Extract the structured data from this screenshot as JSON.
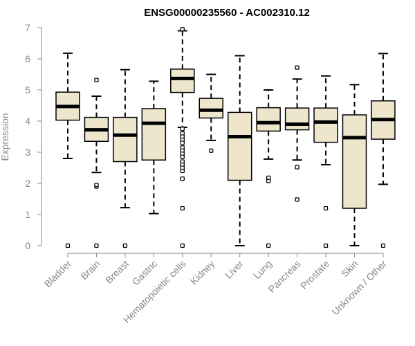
{
  "chart_data": {
    "type": "box",
    "title": "ENSG00000235560 - AC002310.12",
    "xlabel": "",
    "ylabel": "Expression",
    "ylim": [
      0,
      7
    ],
    "yticks": [
      0,
      1,
      2,
      3,
      4,
      5,
      6,
      7
    ],
    "grid": false,
    "legend": "none",
    "box_fill": "#ede6cc",
    "line_color": "#000000",
    "categories": [
      "Bladder",
      "Brain",
      "Breast",
      "Gastric",
      "Hematopoietic cells",
      "Kidney",
      "Liver",
      "Lung",
      "Pancreas",
      "Prostate",
      "Skin",
      "Unknown / Other"
    ],
    "boxes": [
      {
        "category": "Bladder",
        "whisker_low": 2.8,
        "q1": 4.03,
        "median": 4.47,
        "q3": 4.93,
        "whisker_high": 6.18,
        "outliers": [
          0
        ]
      },
      {
        "category": "Brain",
        "whisker_low": 2.35,
        "q1": 3.35,
        "median": 3.72,
        "q3": 4.12,
        "whisker_high": 4.8,
        "outliers": [
          0,
          1.9,
          1.95,
          5.32
        ]
      },
      {
        "category": "Breast",
        "whisker_low": 1.22,
        "q1": 2.7,
        "median": 3.55,
        "q3": 4.12,
        "whisker_high": 5.65,
        "outliers": [
          0
        ]
      },
      {
        "category": "Gastric",
        "whisker_low": 1.03,
        "q1": 2.75,
        "median": 3.93,
        "q3": 4.4,
        "whisker_high": 5.28,
        "outliers": []
      },
      {
        "category": "Hematopoietic cells",
        "whisker_low": 3.8,
        "q1": 4.92,
        "median": 5.37,
        "q3": 5.67,
        "whisker_high": 6.9,
        "outliers": [
          6.95,
          3.75,
          3.6,
          3.5,
          3.4,
          3.3,
          3.15,
          3.05,
          2.95,
          2.85,
          2.7,
          2.6,
          2.5,
          2.4,
          2.15,
          1.2,
          0
        ]
      },
      {
        "category": "Kidney",
        "whisker_low": 3.38,
        "q1": 4.1,
        "median": 4.35,
        "q3": 4.73,
        "whisker_high": 5.5,
        "outliers": [
          3.05
        ]
      },
      {
        "category": "Liver",
        "whisker_low": 0,
        "q1": 2.1,
        "median": 3.5,
        "q3": 4.28,
        "whisker_high": 6.1,
        "outliers": []
      },
      {
        "category": "Lung",
        "whisker_low": 2.78,
        "q1": 3.68,
        "median": 3.95,
        "q3": 4.43,
        "whisker_high": 5.0,
        "outliers": [
          0,
          2.08,
          2.18
        ]
      },
      {
        "category": "Pancreas",
        "whisker_low": 2.75,
        "q1": 3.72,
        "median": 3.9,
        "q3": 4.42,
        "whisker_high": 5.35,
        "outliers": [
          1.48,
          2.52,
          5.72
        ]
      },
      {
        "category": "Prostate",
        "whisker_low": 2.6,
        "q1": 3.32,
        "median": 3.97,
        "q3": 4.42,
        "whisker_high": 5.45,
        "outliers": [
          0,
          1.2
        ]
      },
      {
        "category": "Skin",
        "whisker_low": 0,
        "q1": 1.2,
        "median": 3.47,
        "q3": 4.2,
        "whisker_high": 5.17,
        "outliers": []
      },
      {
        "category": "Unknown / Other",
        "whisker_low": 1.97,
        "q1": 3.42,
        "median": 4.05,
        "q3": 4.65,
        "whisker_high": 6.17,
        "outliers": [
          0
        ]
      }
    ]
  }
}
